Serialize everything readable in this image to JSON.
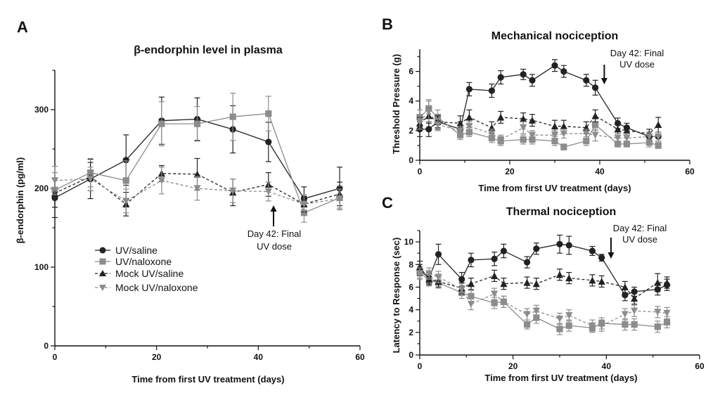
{
  "chart_data": [
    {
      "panel": "A",
      "type": "line",
      "title": "β-endorphin level in plasma",
      "xlabel": "Time from first UV treatment (days)",
      "ylabel": "β-endorphin (pg/ml)",
      "xlim": [
        0,
        60
      ],
      "ylim": [
        0,
        350
      ],
      "xticks": [
        0,
        20,
        40,
        60
      ],
      "yticks": [
        0,
        100,
        200,
        300
      ],
      "legend": "lower-left",
      "annotation": {
        "lines": [
          "Day 42: Final",
          "UV dose"
        ],
        "day": 43,
        "value": 200,
        "direction": "up"
      },
      "series": [
        {
          "name": "UV/saline",
          "marker": "circle",
          "color": "#222222",
          "dash": false,
          "x": [
            0,
            7,
            14,
            21,
            28,
            35,
            42,
            49,
            56
          ],
          "y": [
            188,
            212,
            236,
            286,
            288,
            275,
            259,
            187,
            200
          ],
          "err": [
            25,
            25,
            32,
            30,
            27,
            30,
            25,
            15,
            27
          ]
        },
        {
          "name": "UV/naloxone",
          "marker": "square",
          "color": "#8c8c8c",
          "dash": false,
          "x": [
            0,
            7,
            14,
            21,
            28,
            35,
            42,
            49,
            56
          ],
          "y": [
            198,
            220,
            210,
            282,
            282,
            291,
            295,
            169,
            188
          ],
          "err": [
            22,
            18,
            25,
            28,
            22,
            30,
            22,
            12,
            15
          ]
        },
        {
          "name": "Mock UV/saline",
          "marker": "triangle-up",
          "color": "#222222",
          "dash": true,
          "x": [
            0,
            7,
            14,
            21,
            28,
            35,
            42,
            49,
            56
          ],
          "y": [
            194,
            215,
            180,
            219,
            218,
            195,
            205,
            180,
            193
          ],
          "err": [
            18,
            18,
            15,
            10,
            20,
            17,
            15,
            10,
            15
          ]
        },
        {
          "name": "Mock UV/naloxone",
          "marker": "triangle-down",
          "color": "#8c8c8c",
          "dash": true,
          "x": [
            0,
            7,
            14,
            21,
            28,
            35,
            42,
            49,
            56
          ],
          "y": [
            210,
            212,
            184,
            210,
            200,
            197,
            196,
            180,
            187
          ],
          "err": [
            18,
            15,
            15,
            17,
            15,
            15,
            12,
            12,
            12
          ]
        }
      ]
    },
    {
      "panel": "B",
      "type": "line",
      "title": "Mechanical nociception",
      "xlabel": "Time from first UV treatment (days)",
      "ylabel": "Threshold Pressure (g)",
      "xlim": [
        0,
        60
      ],
      "ylim": [
        0,
        7.5
      ],
      "xticks": [
        0,
        20,
        40,
        60
      ],
      "yticks": [
        0,
        2,
        4,
        6
      ],
      "annotation": {
        "lines": [
          "Day 42: Final",
          "UV dose"
        ],
        "day": 41,
        "value": 5.1,
        "direction": "down"
      },
      "series": [
        {
          "name": "UV/saline",
          "marker": "circle",
          "color": "#222222",
          "dash": false,
          "x": [
            0,
            2,
            4,
            9,
            11,
            16,
            18,
            23,
            25,
            30,
            32,
            37,
            39,
            44,
            46,
            51,
            53
          ],
          "y": [
            2.1,
            2.1,
            2.6,
            2.1,
            4.8,
            4.7,
            5.6,
            5.8,
            5.4,
            6.4,
            6.0,
            5.4,
            4.9,
            2.5,
            2.2,
            1.6,
            1.6
          ],
          "err": [
            0.5,
            0.5,
            0.5,
            0.5,
            0.45,
            0.45,
            0.45,
            0.35,
            0.4,
            0.4,
            0.4,
            0.4,
            0.5,
            0.35,
            0.3,
            0.3,
            0.3
          ]
        },
        {
          "name": "UV/naloxone",
          "marker": "square",
          "color": "#8c8c8c",
          "dash": false,
          "x": [
            0,
            2,
            4,
            9,
            11,
            16,
            18,
            23,
            25,
            30,
            32,
            37,
            39,
            44,
            46,
            51,
            53
          ],
          "y": [
            2.9,
            3.5,
            2.9,
            1.7,
            1.9,
            1.5,
            1.3,
            1.4,
            1.4,
            1.3,
            0.9,
            1.3,
            2.4,
            1.1,
            1.1,
            1.2,
            1.0
          ],
          "err": [
            0.5,
            0.6,
            0.5,
            0.3,
            0.3,
            0.3,
            0.3,
            0.3,
            0.3,
            0.3,
            0.2,
            0.3,
            0.4,
            0.2,
            0.2,
            0.3,
            0.2
          ]
        },
        {
          "name": "Mock UV/saline",
          "marker": "triangle-up",
          "color": "#222222",
          "dash": true,
          "x": [
            0,
            2,
            4,
            9,
            11,
            16,
            18,
            23,
            25,
            30,
            32,
            37,
            39,
            44,
            46,
            51,
            53
          ],
          "y": [
            2.5,
            3.0,
            2.6,
            2.5,
            2.9,
            2.2,
            2.9,
            2.8,
            2.7,
            2.3,
            2.3,
            2.2,
            3.0,
            2.1,
            2.0,
            1.8,
            2.4
          ],
          "err": [
            0.4,
            0.5,
            0.4,
            0.5,
            0.5,
            0.4,
            0.4,
            0.4,
            0.4,
            0.4,
            0.4,
            0.4,
            0.4,
            0.3,
            0.3,
            0.3,
            0.5
          ]
        },
        {
          "name": "Mock UV/naloxone",
          "marker": "triangle-down",
          "color": "#8c8c8c",
          "dash": true,
          "x": [
            0,
            2,
            4,
            9,
            11,
            16,
            18,
            23,
            25,
            30,
            32,
            37,
            39,
            44,
            46,
            51,
            53
          ],
          "y": [
            2.6,
            3.3,
            2.4,
            2.0,
            2.3,
            1.8,
            1.4,
            2.2,
            1.7,
            1.7,
            1.8,
            1.8,
            1.7,
            1.5,
            1.5,
            1.6,
            1.6
          ],
          "err": [
            0.5,
            0.7,
            0.4,
            0.3,
            0.3,
            0.3,
            0.3,
            0.4,
            0.3,
            0.3,
            0.3,
            0.3,
            0.4,
            0.3,
            0.3,
            0.3,
            0.3
          ]
        }
      ]
    },
    {
      "panel": "C",
      "type": "line",
      "title": "Thermal nociception",
      "xlabel": "Time from first UV treatment (days)",
      "ylabel": "Latency to Response (sec)",
      "xlim": [
        0,
        60
      ],
      "ylim": [
        0,
        11
      ],
      "xticks": [
        0,
        20,
        40,
        60
      ],
      "yticks": [
        0,
        2,
        4,
        6,
        8,
        10
      ],
      "annotation": {
        "lines": [
          "Day 42: Final",
          "UV dose"
        ],
        "day": 41,
        "value": 8.6,
        "direction": "down"
      },
      "series": [
        {
          "name": "UV/saline",
          "marker": "circle",
          "color": "#222222",
          "dash": false,
          "x": [
            0,
            2,
            4,
            9,
            11,
            16,
            18,
            23,
            25,
            30,
            32,
            37,
            39,
            44,
            46,
            51,
            53
          ],
          "y": [
            7.5,
            6.8,
            8.9,
            6.7,
            8.4,
            8.5,
            9.2,
            8.2,
            9.4,
            9.8,
            9.7,
            9.2,
            8.6,
            5.3,
            5.6,
            5.8,
            6.2
          ],
          "err": [
            0.5,
            0.5,
            0.9,
            0.6,
            0.6,
            0.6,
            0.6,
            0.5,
            0.5,
            0.8,
            0.8,
            0.4,
            0.3,
            0.5,
            0.4,
            0.5,
            0.5
          ]
        },
        {
          "name": "UV/naloxone",
          "marker": "square",
          "color": "#8c8c8c",
          "dash": false,
          "x": [
            0,
            2,
            4,
            9,
            11,
            16,
            18,
            23,
            25,
            30,
            32,
            37,
            39,
            44,
            46,
            51,
            53
          ],
          "y": [
            7.3,
            6.6,
            6.4,
            5.5,
            5.2,
            4.6,
            4.7,
            2.7,
            3.3,
            2.3,
            2.6,
            2.4,
            2.8,
            2.7,
            2.7,
            2.5,
            2.9
          ],
          "err": [
            0.5,
            0.5,
            0.5,
            0.5,
            0.5,
            0.5,
            0.5,
            0.4,
            0.5,
            0.5,
            0.5,
            0.4,
            0.5,
            0.5,
            0.5,
            0.5,
            0.5
          ]
        },
        {
          "name": "Mock UV/saline",
          "marker": "triangle-up",
          "color": "#222222",
          "dash": true,
          "x": [
            0,
            2,
            4,
            9,
            11,
            16,
            18,
            23,
            25,
            30,
            32,
            37,
            39,
            44,
            46,
            51,
            53
          ],
          "y": [
            7.8,
            6.7,
            6.5,
            5.9,
            6.3,
            7.0,
            6.3,
            6.4,
            6.3,
            7.1,
            6.8,
            6.6,
            6.5,
            6.0,
            5.0,
            6.4,
            6.4
          ],
          "err": [
            0.5,
            0.5,
            0.5,
            0.5,
            0.5,
            0.5,
            0.5,
            0.5,
            0.5,
            0.5,
            0.5,
            0.5,
            0.5,
            0.5,
            0.5,
            0.8,
            0.5
          ]
        },
        {
          "name": "Mock UV/naloxone",
          "marker": "triangle-down",
          "color": "#8c8c8c",
          "dash": true,
          "x": [
            0,
            2,
            4,
            9,
            11,
            16,
            18,
            23,
            25,
            30,
            32,
            37,
            39,
            44,
            46,
            51,
            53
          ],
          "y": [
            7.2,
            7.2,
            6.9,
            5.8,
            4.5,
            5.4,
            4.7,
            3.6,
            3.9,
            3.2,
            3.5,
            2.6,
            2.6,
            3.6,
            3.9,
            3.8,
            3.7
          ],
          "err": [
            0.5,
            0.5,
            0.5,
            0.5,
            0.5,
            0.5,
            0.5,
            0.5,
            0.5,
            0.5,
            0.5,
            0.5,
            0.5,
            0.5,
            0.5,
            0.5,
            0.5
          ]
        }
      ]
    }
  ]
}
